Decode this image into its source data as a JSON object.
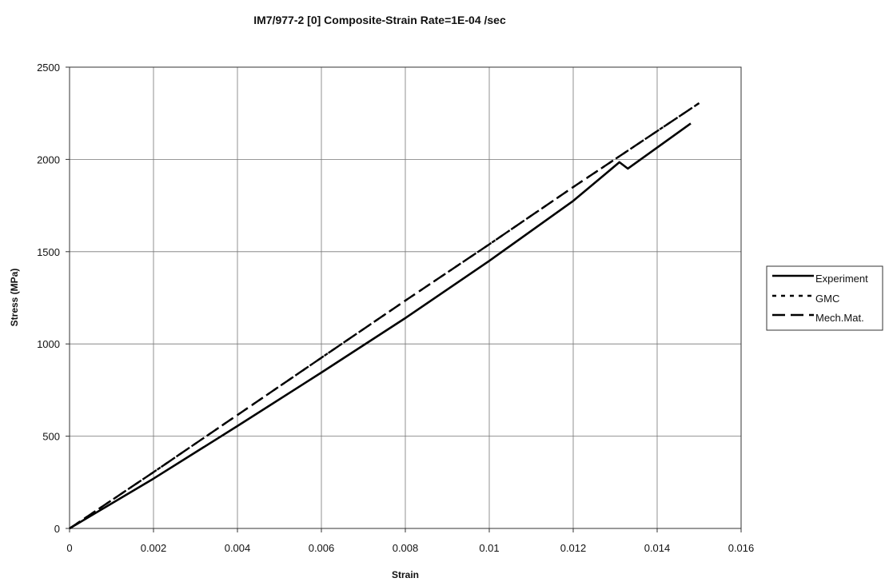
{
  "chart_data": {
    "type": "line",
    "title": "IM7/977-2 [0] Composite-Strain Rate=1E-04 /sec",
    "xlabel": "Strain",
    "ylabel": "Stress (MPa)",
    "xlim": [
      0,
      0.016
    ],
    "ylim": [
      0,
      2500
    ],
    "x_ticks": [
      0,
      0.002,
      0.004,
      0.006,
      0.008,
      0.01,
      0.012,
      0.014,
      0.016
    ],
    "x_tick_labels": [
      "0",
      "0.002",
      "0.004",
      "0.006",
      "0.008",
      "0.01",
      "0.012",
      "0.014",
      "0.016"
    ],
    "y_ticks": [
      0,
      500,
      1000,
      1500,
      2000,
      2500
    ],
    "y_tick_labels": [
      "0",
      "500",
      "1000",
      "1500",
      "2000",
      "2500"
    ],
    "grid": true,
    "legend_position": "right",
    "series": [
      {
        "name": "Experiment",
        "style": "solid",
        "color": "#000000",
        "x": [
          0,
          0.002,
          0.004,
          0.006,
          0.008,
          0.01,
          0.012,
          0.0131,
          0.0133,
          0.0148
        ],
        "y": [
          0,
          270,
          555,
          845,
          1140,
          1450,
          1775,
          1985,
          1950,
          2195
        ]
      },
      {
        "name": "GMC",
        "style": "dotted",
        "color": "#000000",
        "x": [
          0,
          0.002,
          0.004,
          0.006,
          0.008,
          0.01,
          0.012,
          0.015
        ],
        "y": [
          0,
          305,
          615,
          925,
          1235,
          1540,
          1850,
          2305
        ]
      },
      {
        "name": "Mech.Mat.",
        "style": "dashed",
        "color": "#000000",
        "x": [
          0,
          0.002,
          0.004,
          0.006,
          0.008,
          0.01,
          0.012,
          0.015
        ],
        "y": [
          0,
          305,
          615,
          925,
          1235,
          1540,
          1850,
          2305
        ]
      }
    ]
  }
}
